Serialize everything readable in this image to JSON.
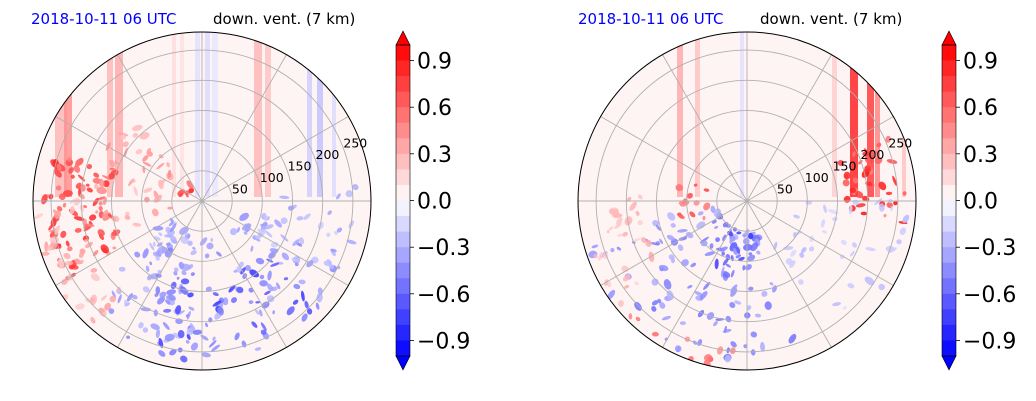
{
  "figure": {
    "panels": [
      {
        "time_label": "2018-10-11 06 UTC",
        "field_label": "down. vent. (7 km)"
      },
      {
        "time_label": "2018-10-11 06 UTC",
        "field_label": "down. vent. (7 km)"
      }
    ]
  },
  "chart_data": [
    {
      "type": "heatmap",
      "projection": "polar",
      "title_left": "2018-10-11 06 UTC",
      "title_right": "down. vent. (7 km)",
      "radial_ticks": [
        50,
        100,
        150,
        200,
        250
      ],
      "radial_tick_labels": [
        "50",
        "100",
        "150",
        "200",
        "250"
      ],
      "rlim": [
        0,
        280
      ],
      "angular_gridlines_deg": [
        0,
        30,
        60,
        90,
        120,
        150,
        180,
        210,
        240,
        270,
        300,
        330
      ],
      "grid": true,
      "colormap": "bwr",
      "colorbar": {
        "range": [
          -1.0,
          1.0
        ],
        "levels": 20,
        "extend": "both",
        "ticks": [
          0.9,
          0.6,
          0.3,
          0.0,
          -0.3,
          -0.6,
          -0.9
        ],
        "tick_labels": [
          "0.9",
          "0.6",
          "0.3",
          "0.0",
          "−0.3",
          "−0.6",
          "−0.9"
        ]
      }
    },
    {
      "type": "heatmap",
      "projection": "polar",
      "title_left": "2018-10-11 06 UTC",
      "title_right": "down. vent. (7 km)",
      "radial_ticks": [
        50,
        100,
        150,
        200,
        250
      ],
      "radial_tick_labels": [
        "50",
        "100",
        "150",
        "200",
        "250"
      ],
      "rlim": [
        0,
        280
      ],
      "angular_gridlines_deg": [
        0,
        30,
        60,
        90,
        120,
        150,
        180,
        210,
        240,
        270,
        300,
        330
      ],
      "grid": true,
      "colormap": "bwr",
      "colorbar": {
        "range": [
          -1.0,
          1.0
        ],
        "levels": 20,
        "extend": "both",
        "ticks": [
          0.9,
          0.6,
          0.3,
          0.0,
          -0.3,
          -0.6,
          -0.9
        ],
        "tick_labels": [
          "0.9",
          "0.6",
          "0.3",
          "0.0",
          "−0.3",
          "−0.6",
          "−0.9"
        ]
      }
    }
  ]
}
